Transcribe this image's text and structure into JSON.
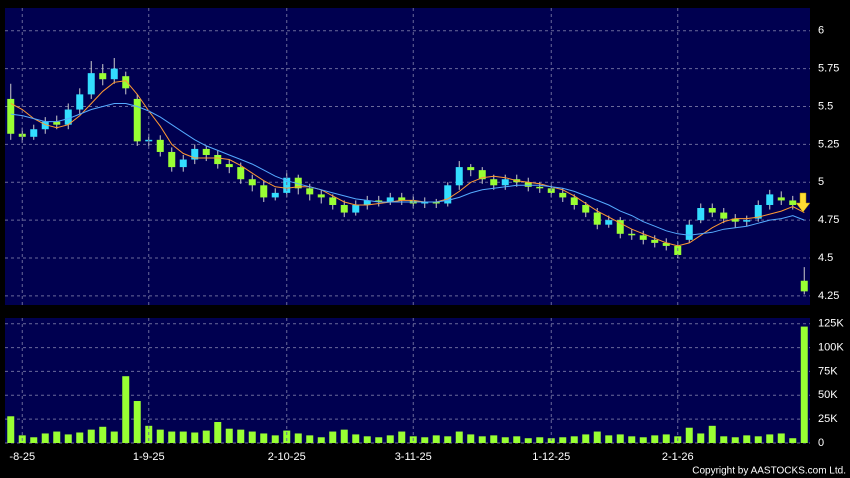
{
  "chart_data": [
    {
      "type": "candlestick",
      "open": [
        5.55,
        5.32,
        5.3,
        5.35,
        5.4,
        5.38,
        5.48,
        5.58,
        5.72,
        5.68,
        5.7,
        5.55,
        5.27,
        5.28,
        5.2,
        5.1,
        5.15,
        5.22,
        5.18,
        5.12,
        5.1,
        5.02,
        4.98,
        4.9,
        4.93,
        5.03,
        4.96,
        4.92,
        4.9,
        4.85,
        4.8,
        4.85,
        4.88,
        4.87,
        4.9,
        4.88,
        4.86,
        4.87,
        4.86,
        4.98,
        5.1,
        5.08,
        5.02,
        4.98,
        5.02,
        5.0,
        4.97,
        4.96,
        4.93,
        4.9,
        4.85,
        4.8,
        4.72,
        4.75,
        4.66,
        4.65,
        4.62,
        4.6,
        4.58,
        4.62,
        4.75,
        4.83,
        4.8,
        4.76,
        4.74,
        4.76,
        4.85,
        4.9,
        4.88,
        4.35
      ],
      "high": [
        5.65,
        5.36,
        5.38,
        5.43,
        5.44,
        5.52,
        5.62,
        5.8,
        5.78,
        5.82,
        5.73,
        5.58,
        5.32,
        5.31,
        5.23,
        5.18,
        5.25,
        5.24,
        5.21,
        5.15,
        5.13,
        5.05,
        5.01,
        4.96,
        5.06,
        5.05,
        4.99,
        4.95,
        4.92,
        4.88,
        4.88,
        4.91,
        4.91,
        4.93,
        4.93,
        4.91,
        4.9,
        4.89,
        5.0,
        5.14,
        5.12,
        5.1,
        5.05,
        5.05,
        5.05,
        5.03,
        5.0,
        4.98,
        4.96,
        4.92,
        4.87,
        4.83,
        4.78,
        4.77,
        4.69,
        4.68,
        4.65,
        4.63,
        4.61,
        4.75,
        4.86,
        4.86,
        4.83,
        4.79,
        4.78,
        4.88,
        4.95,
        4.94,
        4.91,
        4.44
      ],
      "low": [
        5.28,
        5.26,
        5.28,
        5.32,
        5.35,
        5.35,
        5.45,
        5.55,
        5.64,
        5.65,
        5.58,
        5.24,
        5.24,
        5.17,
        5.07,
        5.07,
        5.12,
        5.14,
        5.09,
        5.06,
        4.99,
        4.94,
        4.87,
        4.88,
        4.9,
        4.92,
        4.88,
        4.86,
        4.82,
        4.77,
        4.78,
        4.82,
        4.84,
        4.85,
        4.85,
        4.83,
        4.83,
        4.83,
        4.84,
        4.95,
        5.04,
        4.99,
        4.95,
        4.95,
        4.97,
        4.94,
        4.93,
        4.9,
        4.87,
        4.82,
        4.77,
        4.69,
        4.7,
        4.63,
        4.62,
        4.59,
        4.57,
        4.55,
        4.5,
        4.6,
        4.73,
        4.77,
        4.73,
        4.7,
        4.71,
        4.74,
        4.82,
        4.85,
        4.82,
        4.26
      ],
      "close": [
        5.32,
        5.3,
        5.35,
        5.4,
        5.38,
        5.48,
        5.58,
        5.72,
        5.68,
        5.75,
        5.62,
        5.27,
        5.28,
        5.2,
        5.1,
        5.15,
        5.22,
        5.18,
        5.12,
        5.1,
        5.02,
        4.98,
        4.9,
        4.93,
        5.03,
        4.96,
        4.92,
        4.9,
        4.85,
        4.8,
        4.85,
        4.88,
        4.87,
        4.9,
        4.88,
        4.86,
        4.87,
        4.86,
        4.98,
        5.1,
        5.08,
        5.02,
        4.98,
        5.02,
        5.0,
        4.97,
        4.96,
        4.93,
        4.9,
        4.85,
        4.8,
        4.72,
        4.75,
        4.66,
        4.65,
        4.62,
        4.6,
        4.58,
        4.52,
        4.72,
        4.83,
        4.8,
        4.76,
        4.74,
        4.75,
        4.85,
        4.92,
        4.88,
        4.85,
        4.28
      ],
      "up_color": "#33ddff",
      "down_color": "#99ff33",
      "lines": [
        {
          "color": "#ff9933",
          "values": [
            5.52,
            5.48,
            5.42,
            5.38,
            5.36,
            5.38,
            5.44,
            5.52,
            5.6,
            5.66,
            5.67,
            5.58,
            5.47,
            5.37,
            5.25,
            5.19,
            5.16,
            5.16,
            5.16,
            5.15,
            5.11,
            5.06,
            5.01,
            4.97,
            4.96,
            4.97,
            4.97,
            4.95,
            4.91,
            4.87,
            4.85,
            4.85,
            4.86,
            4.87,
            4.88,
            4.88,
            4.87,
            4.87,
            4.89,
            4.94,
            5.0,
            5.03,
            5.04,
            5.03,
            5.01,
            5.0,
            4.99,
            4.97,
            4.95,
            4.91,
            4.86,
            4.81,
            4.77,
            4.73,
            4.69,
            4.66,
            4.63,
            4.6,
            4.58,
            4.6,
            4.65,
            4.7,
            4.74,
            4.76,
            4.76,
            4.77,
            4.79,
            4.81,
            4.84,
            4.8
          ]
        },
        {
          "color": "#55aaff",
          "values": [
            5.45,
            5.44,
            5.42,
            5.4,
            5.4,
            5.42,
            5.45,
            5.48,
            5.5,
            5.52,
            5.52,
            5.5,
            5.47,
            5.43,
            5.38,
            5.33,
            5.28,
            5.24,
            5.21,
            5.18,
            5.15,
            5.12,
            5.08,
            5.04,
            5.01,
            4.99,
            4.97,
            4.95,
            4.93,
            4.91,
            4.89,
            4.88,
            4.87,
            4.87,
            4.87,
            4.87,
            4.87,
            4.87,
            4.88,
            4.9,
            4.93,
            4.95,
            4.96,
            4.97,
            4.98,
            4.98,
            4.98,
            4.97,
            4.96,
            4.94,
            4.91,
            4.88,
            4.85,
            4.81,
            4.78,
            4.74,
            4.71,
            4.68,
            4.66,
            4.65,
            4.66,
            4.67,
            4.69,
            4.7,
            4.71,
            4.73,
            4.75,
            4.76,
            4.78,
            4.75
          ]
        }
      ],
      "ylim": [
        4.19,
        6.15
      ],
      "yticks": [
        4.25,
        4.5,
        4.75,
        5,
        5.25,
        5.5,
        5.75,
        6
      ],
      "grid": true
    },
    {
      "type": "bar",
      "categories": [
        null,
        "-8-25",
        null,
        null,
        null,
        null,
        null,
        null,
        null,
        null,
        null,
        null,
        "1-9-25",
        null,
        null,
        null,
        null,
        null,
        null,
        null,
        null,
        null,
        null,
        null,
        "2-10-25",
        null,
        null,
        null,
        null,
        null,
        null,
        null,
        null,
        null,
        null,
        "3-11-25",
        null,
        null,
        null,
        null,
        null,
        null,
        null,
        null,
        null,
        null,
        null,
        "1-12-25",
        null,
        null,
        null,
        null,
        null,
        null,
        null,
        null,
        null,
        null,
        "2-1-26",
        null,
        null,
        null,
        null,
        null,
        null,
        null,
        null,
        null,
        null,
        null
      ],
      "values": [
        28000,
        8000,
        6000,
        10000,
        12000,
        9000,
        11000,
        14000,
        17000,
        12000,
        70000,
        44000,
        18000,
        14000,
        12000,
        12000,
        11000,
        13000,
        22000,
        15000,
        14000,
        12000,
        10000,
        8000,
        13000,
        10000,
        8000,
        6000,
        12000,
        14000,
        9000,
        7000,
        6000,
        8000,
        12000,
        7000,
        6000,
        8000,
        7000,
        12000,
        9000,
        7000,
        8000,
        6000,
        7000,
        5000,
        6000,
        5000,
        6000,
        7000,
        9000,
        12000,
        8000,
        9000,
        7000,
        6000,
        8000,
        9000,
        7000,
        16000,
        10000,
        18000,
        7000,
        6000,
        8000,
        7000,
        9000,
        10000,
        5000,
        122000
      ],
      "color": "#99ff33",
      "ylim": [
        0,
        131000
      ],
      "yticks": [
        0,
        {
          "value": 25000,
          "label": "25K"
        },
        {
          "value": 50000,
          "label": "50K"
        },
        {
          "value": 75000,
          "label": "75K"
        },
        {
          "value": 100000,
          "label": "100K"
        },
        {
          "value": 125000,
          "label": "125K"
        }
      ],
      "grid": true
    }
  ],
  "footer": "Copyright by AASTOCKS.com Ltd."
}
